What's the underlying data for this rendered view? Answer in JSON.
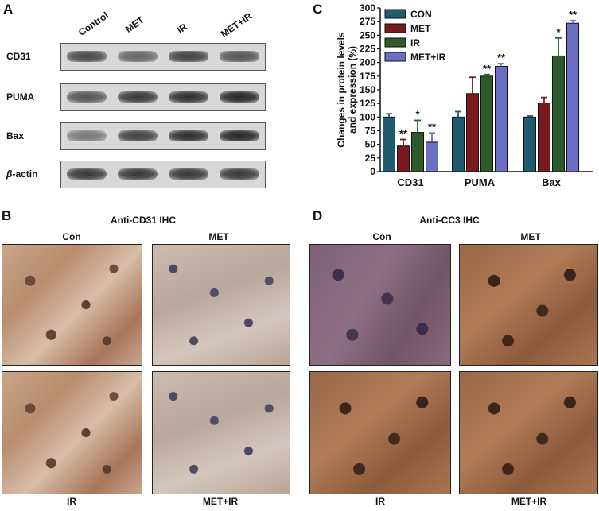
{
  "panels": {
    "a": {
      "letter": "A",
      "lanes": [
        "Control",
        "MET",
        "IR",
        "MET+IR"
      ],
      "rows": [
        {
          "label": "CD31",
          "intensity": [
            0.75,
            0.6,
            0.8,
            0.7
          ]
        },
        {
          "label": "PUMA",
          "intensity": [
            0.7,
            0.85,
            0.9,
            0.95
          ]
        },
        {
          "label": "Bax",
          "intensity": [
            0.5,
            0.8,
            0.9,
            0.95
          ]
        },
        {
          "label": "β-actin",
          "label_prefix": "β",
          "label_suffix": "-actin",
          "intensity": [
            0.85,
            0.85,
            0.85,
            0.85
          ]
        }
      ]
    },
    "b": {
      "letter": "B",
      "title": "Anti-CD31 IHC",
      "labels": [
        "Con",
        "MET",
        "IR",
        "MET+IR"
      ]
    },
    "c": {
      "letter": "C"
    },
    "d": {
      "letter": "D",
      "title": "Anti-CC3 IHC",
      "labels": [
        "Con",
        "MET",
        "IR",
        "MET+IR"
      ]
    }
  },
  "chart_data": {
    "type": "bar",
    "categories": [
      "CD31",
      "PUMA",
      "Bax"
    ],
    "ylabel": "Changes in protein levels and expression (%)",
    "ylabel_lines": [
      "Changes in protein levels",
      "and expression (%)"
    ],
    "ylim": [
      0,
      300
    ],
    "yticks": [
      0,
      25,
      50,
      75,
      100,
      125,
      150,
      175,
      200,
      225,
      250,
      275,
      300
    ],
    "legend_position": "top-left",
    "series": [
      {
        "name": "CON",
        "color": "#1f5a6e",
        "values": [
          100,
          100,
          100
        ],
        "errors": [
          6,
          10,
          2
        ],
        "sig": [
          "",
          "",
          ""
        ]
      },
      {
        "name": "MET",
        "color": "#7a1a1c",
        "values": [
          47,
          143,
          126
        ],
        "errors": [
          12,
          30,
          10
        ],
        "sig": [
          "**",
          "",
          ""
        ]
      },
      {
        "name": "IR",
        "color": "#2d5a2a",
        "values": [
          72,
          175,
          212
        ],
        "errors": [
          22,
          3,
          33
        ],
        "sig": [
          "*",
          "**",
          "*"
        ]
      },
      {
        "name": "MET+IR",
        "color": "#6b6fc4",
        "values": [
          54,
          193,
          272
        ],
        "errors": [
          17,
          5,
          5
        ],
        "sig": [
          "**",
          "**",
          "**"
        ]
      }
    ]
  }
}
